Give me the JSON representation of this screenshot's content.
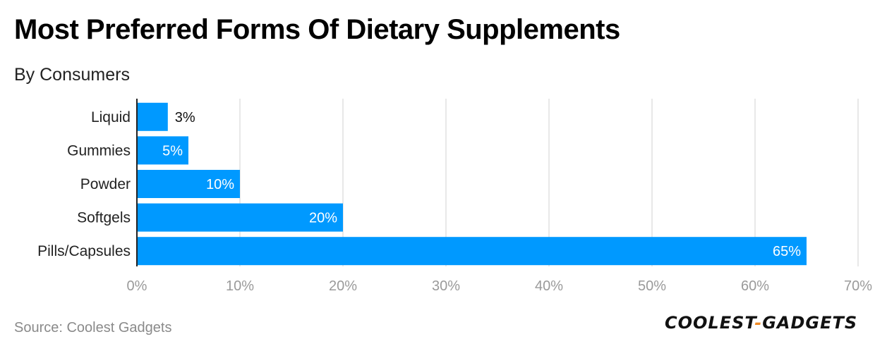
{
  "title": "Most Preferred Forms Of Dietary Supplements",
  "subtitle": "By Consumers",
  "source": "Source: Coolest Gadgets",
  "logo": {
    "left": "COOLEST",
    "sep": "-",
    "right": "GADGETS"
  },
  "colors": {
    "bar": "#0099ff",
    "grid": "#e0e0e0",
    "axis": "#222222",
    "label_inside": "#ffffff",
    "label_outside": "#111111"
  },
  "chart_data": {
    "type": "bar",
    "orientation": "horizontal",
    "categories": [
      "Liquid",
      "Gummies",
      "Powder",
      "Softgels",
      "Pills/Capsules"
    ],
    "values": [
      3,
      5,
      10,
      20,
      65
    ],
    "value_labels": [
      "3%",
      "5%",
      "10%",
      "20%",
      "65%"
    ],
    "xlim": [
      0,
      70
    ],
    "x_ticks": [
      0,
      10,
      20,
      30,
      40,
      50,
      60,
      70
    ],
    "x_tick_labels": [
      "0%",
      "10%",
      "20%",
      "30%",
      "40%",
      "50%",
      "60%",
      "70%"
    ],
    "grid": true
  }
}
